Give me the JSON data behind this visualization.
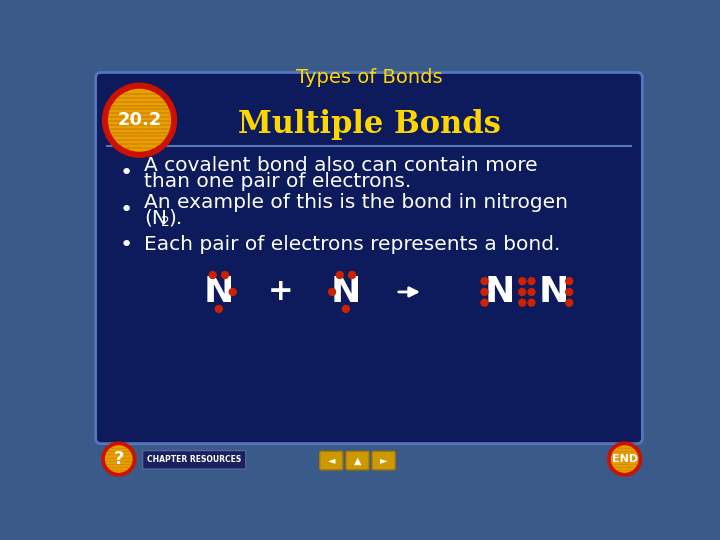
{
  "title": "Types of Bonds",
  "title_color": "#FFD700",
  "section_number": "20.2",
  "section_title": "Multiple Bonds",
  "section_title_color": "#FFD700",
  "outer_bg_color": "#3a5a8a",
  "panel_bg": "#0d1a5c",
  "bullet1_line1": "A covalent bond also can contain more",
  "bullet1_line2": "than one pair of electrons.",
  "bullet2_line1": "An example of this is the bond in nitrogen",
  "bullet2_line2": "(N",
  "bullet2_sub": "2",
  "bullet2_line3": ").",
  "bullet3": "Each pair of electrons represents a bond.",
  "text_color": "#ffffff",
  "dot_color": "#cc2200",
  "n_color": "#ffffff",
  "badge_red": "#cc1100",
  "badge_orange": "#e8a000",
  "badge_stripe": "#c87800",
  "badge_text": "#ffffff",
  "nav_color": "#cc9900",
  "end_color": "#cc9900",
  "chap_bg": "#1a2060",
  "panel_edge": "#5577bb"
}
